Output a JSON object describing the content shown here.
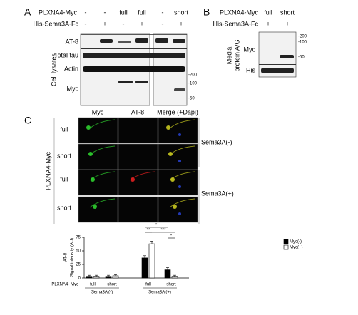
{
  "panel_a": {
    "label": "A",
    "row_labels": [
      "PLXNA4-Myc",
      "His-Sema3A-Fc"
    ],
    "plxna4": [
      "-",
      "-",
      "full",
      "full",
      "-",
      "short"
    ],
    "sema3a": [
      "-",
      "+",
      "-",
      "+",
      "-",
      "+"
    ],
    "blot_labels": [
      "AT-8",
      "Total tau",
      "Actin",
      "Myc"
    ],
    "side_label": "Cell lysates",
    "markers": [
      "-200",
      "-100",
      "-50"
    ]
  },
  "panel_b": {
    "label": "B",
    "row_labels": [
      "PLXNA4-Myc",
      "His-Sema3A-Fc"
    ],
    "plxna4": [
      "full",
      "short"
    ],
    "sema3a": [
      "+",
      "+"
    ],
    "blot_labels": [
      "Myc",
      "His"
    ],
    "side_label": [
      "Media",
      "protein A/G"
    ],
    "markers": [
      "-200",
      "-100",
      "-50"
    ]
  },
  "panel_c": {
    "label": "C",
    "columns": [
      "Myc",
      "AT-8",
      "Merge (+Dapi)"
    ],
    "rows": [
      "full",
      "short",
      "full",
      "short"
    ],
    "side_label": "PLXNA4-Myc",
    "conditions": [
      "Sema3A(-)",
      "Sema3A(+)"
    ]
  },
  "chart_data": {
    "type": "bar",
    "ylabel_top": "AT-8",
    "ylabel": "Signal intensity (AU)",
    "x_row_label": "PLXNA4- Myc",
    "categories": [
      "full",
      "short",
      "full",
      "short"
    ],
    "groups": [
      "Sema3A (-)",
      "Sema3A (+)"
    ],
    "series": [
      {
        "name": "Myc(-)",
        "color": "#000000",
        "values": [
          3,
          3,
          37,
          15
        ],
        "errors": [
          2,
          2,
          4,
          4
        ]
      },
      {
        "name": "Myc(+)",
        "color": "#ffffff",
        "values": [
          3,
          4,
          63,
          3
        ],
        "errors": [
          2,
          2,
          5,
          2
        ]
      }
    ],
    "ylim": [
      0,
      75
    ],
    "yticks": [
      0,
      25,
      50,
      75
    ],
    "annotations": [
      "*",
      "**",
      "***",
      "*"
    ]
  }
}
